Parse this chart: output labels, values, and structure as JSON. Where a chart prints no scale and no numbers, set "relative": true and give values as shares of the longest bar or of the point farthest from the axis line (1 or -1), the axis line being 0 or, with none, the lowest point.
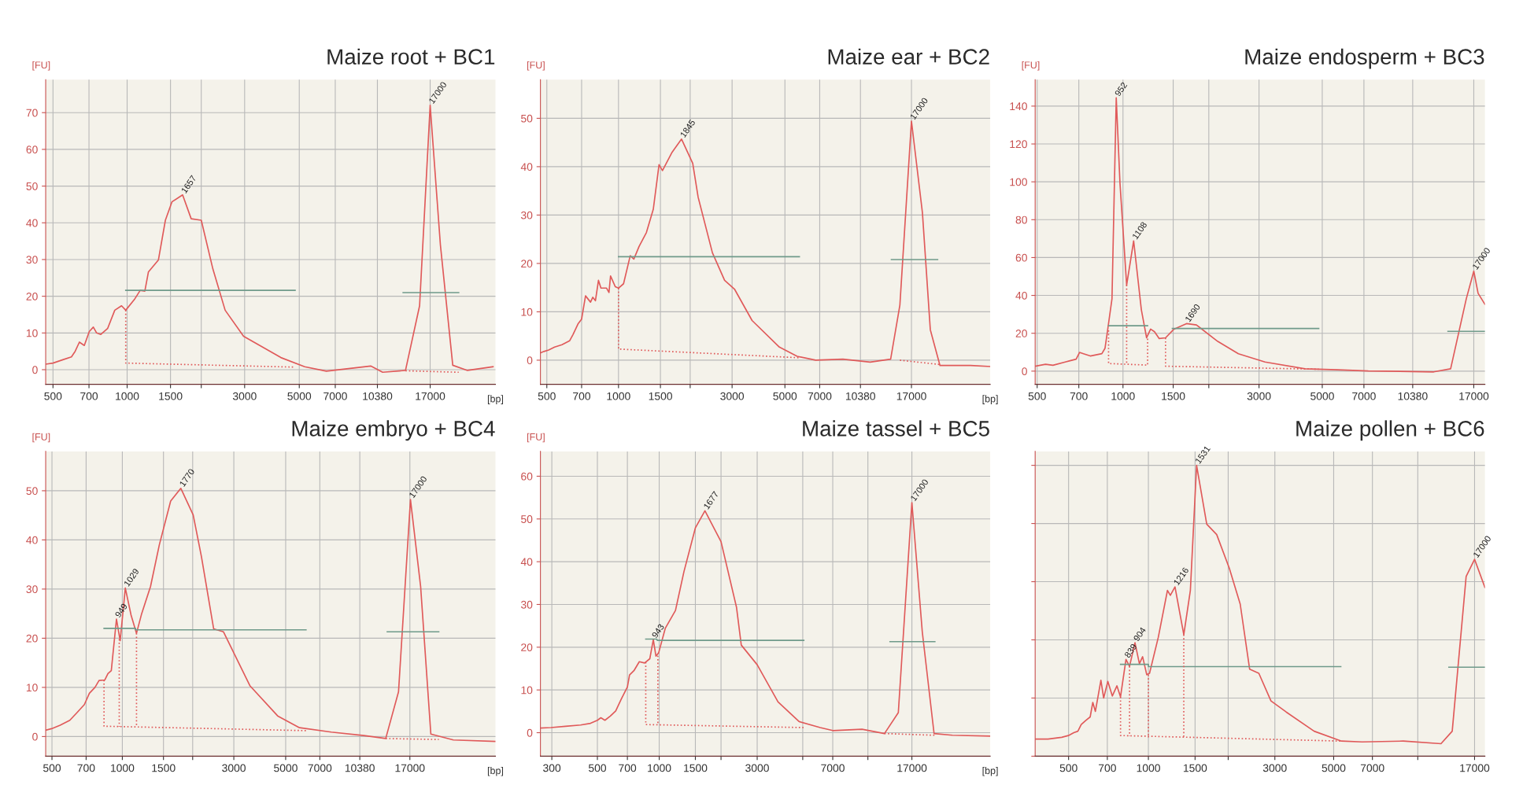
{
  "chart_data": [
    {
      "type": "line",
      "title": "Maize root + BC1",
      "log": "x",
      "xlabel": "[bp]",
      "ylabel": "[FU]",
      "xlim": [
        467,
        31300
      ],
      "ylim": [
        -4,
        79
      ],
      "yticks": [
        0,
        10,
        20,
        30,
        40,
        50,
        60,
        70
      ],
      "grid": true,
      "line_style": "solid",
      "xticks": [
        500,
        700,
        1000,
        1500,
        {
          "value": 2000,
          "label": null
        },
        3000,
        5000,
        7000,
        10380,
        17000
      ],
      "series": [
        {
          "color": "#e05a5a",
          "x": [
            467,
            500,
            548,
            594,
            615,
            640,
            670,
            702,
            729,
            752,
            782,
            833,
            891,
            949,
            987,
            1070,
            1130,
            1180,
            1220,
            1340,
            1430,
            1520,
            1680,
            1820,
            2000,
            2230,
            2500,
            2970,
            4210,
            5260,
            6440,
            9750,
            10900,
            13500,
            15400,
            17000,
            18700,
            21000,
            24100,
            30600
          ],
          "values": [
            1.5,
            1.8,
            2.7,
            3.5,
            5.0,
            7.5,
            6.6,
            10.4,
            11.6,
            10.0,
            9.6,
            11.2,
            16.2,
            17.4,
            16.2,
            19.1,
            21.6,
            21.4,
            26.6,
            29.9,
            40.7,
            45.7,
            47.6,
            41.1,
            40.7,
            27.4,
            16.2,
            9.1,
            3.3,
            0.8,
            -0.4,
            1.0,
            -0.7,
            -0.2,
            17.4,
            72.0,
            34.1,
            1.2,
            -0.2,
            0.8
          ]
        },
        {
          "color": "#6f9a8a",
          "x": [
            987,
            4810
          ],
          "values": [
            21.6,
            21.6
          ]
        },
        {
          "color": "#6f9a8a",
          "x": [
            13200,
            22200
          ],
          "values": [
            21.0,
            21.0
          ]
        },
        {
          "color": "#e05a5a",
          "line_style": "dotted",
          "x": [
            987,
            987,
            4810
          ],
          "values": [
            16.2,
            1.8,
            0.7
          ]
        },
        {
          "color": "#e05a5a",
          "line_style": "dotted",
          "x": [
            13500,
            22200
          ],
          "values": [
            -0.3,
            -0.7
          ]
        }
      ],
      "annotations": [
        {
          "text": "1657",
          "x": 1680,
          "y": 47.6
        },
        {
          "text": "17000",
          "x": 17000,
          "y": 72.0
        }
      ]
    },
    {
      "type": "line",
      "title": "Maize ear + BC2",
      "log": "x",
      "xlabel": "[bp]",
      "ylabel": "[FU]",
      "xlim": [
        470,
        36400
      ],
      "ylim": [
        -5,
        58
      ],
      "yticks": [
        0,
        10,
        20,
        30,
        40,
        50
      ],
      "grid": true,
      "line_style": "solid",
      "xticks": [
        500,
        700,
        1000,
        1500,
        {
          "value": 2000,
          "label": null
        },
        3000,
        5000,
        7000,
        10380,
        17000
      ],
      "series": [
        {
          "color": "#e05a5a",
          "x": [
            470,
            486,
            509,
            539,
            579,
            623,
            644,
            676,
            700,
            727,
            763,
            780,
            800,
            824,
            844,
            891,
            912,
            926,
            969,
            1000,
            1050,
            1120,
            1160,
            1220,
            1310,
            1400,
            1480,
            1530,
            1680,
            1840,
            2050,
            2160,
            2480,
            2790,
            3070,
            3640,
            4740,
            5630,
            6730,
            8760,
            11400,
            13900,
            15200,
            17000,
            18900,
            20400,
            22400,
            30100,
            36400
          ],
          "values": [
            1.5,
            1.8,
            2.1,
            2.7,
            3.2,
            4.0,
            5.3,
            7.5,
            8.5,
            13.3,
            12.0,
            13.0,
            12.3,
            16.5,
            14.9,
            14.9,
            14.0,
            17.4,
            15.2,
            14.9,
            15.8,
            21.6,
            20.9,
            23.5,
            26.4,
            31.2,
            40.4,
            39.2,
            43.0,
            45.7,
            40.7,
            33.7,
            22.2,
            16.5,
            14.7,
            8.2,
            2.7,
            0.8,
            0,
            0.2,
            -0.4,
            0.2,
            11.4,
            49.4,
            30.5,
            6.3,
            -1.1,
            -1.1,
            -1.3
          ]
        },
        {
          "color": "#6f9a8a",
          "x": [
            1000,
            5750
          ],
          "values": [
            21.4,
            21.4
          ]
        },
        {
          "color": "#6f9a8a",
          "x": [
            14000,
            21900
          ],
          "values": [
            20.8,
            20.8
          ]
        },
        {
          "color": "#e05a5a",
          "line_style": "dotted",
          "x": [
            1000,
            1000,
            5750
          ],
          "values": [
            14.9,
            2.3,
            0.5
          ]
        },
        {
          "color": "#e05a5a",
          "line_style": "dotted",
          "x": [
            15200,
            22400
          ],
          "values": [
            0,
            -0.9
          ]
        }
      ],
      "annotations": [
        {
          "text": "1845",
          "x": 1840,
          "y": 45.7
        },
        {
          "text": "17000",
          "x": 17000,
          "y": 49.4
        }
      ]
    },
    {
      "type": "line",
      "title": "Maize endosperm + BC3",
      "log": "x",
      "ylabel": "[FU]",
      "xlim": [
        492,
        18600
      ],
      "ylim": [
        -7,
        154
      ],
      "yticks": [
        0,
        20,
        40,
        60,
        80,
        100,
        120,
        140
      ],
      "grid": true,
      "line_style": "solid",
      "xticks": [
        500,
        700,
        1000,
        1500,
        {
          "value": 2000,
          "label": null
        },
        3000,
        5000,
        7000,
        10380,
        17000
      ],
      "series": [
        {
          "color": "#e05a5a",
          "x": [
            492,
            535,
            568,
            627,
            652,
            685,
            704,
            727,
            768,
            843,
            865,
            883,
            915,
            947,
            976,
            1030,
            1090,
            1160,
            1210,
            1250,
            1290,
            1340,
            1410,
            1510,
            1670,
            1810,
            2150,
            2540,
            3150,
            4350,
            5650,
            7250,
            12300,
            14100,
            16000,
            17000,
            17600,
            18600
          ],
          "values": [
            2.6,
            3.6,
            3.1,
            4.8,
            5.5,
            6.3,
            9.9,
            9.2,
            8.0,
            9.2,
            12.1,
            21.5,
            38.2,
            144.4,
            99.3,
            45.5,
            68.8,
            32.4,
            17.6,
            22.2,
            20.8,
            17.2,
            17.6,
            22.2,
            25.1,
            24.4,
            15.7,
            9.2,
            4.8,
            1.2,
            0.7,
            0.1,
            -0.4,
            1.2,
            38.2,
            52.8,
            41.1,
            35.3
          ]
        },
        {
          "color": "#6f9a8a",
          "x": [
            890,
            1220
          ],
          "values": [
            24.0,
            24.0
          ]
        },
        {
          "color": "#6f9a8a",
          "x": [
            1490,
            4860
          ],
          "values": [
            22.5,
            22.5
          ]
        },
        {
          "color": "#6f9a8a",
          "x": [
            13800,
            18600
          ],
          "values": [
            21.0,
            21.0
          ]
        },
        {
          "color": "#e05a5a",
          "line_style": "dotted",
          "x": [
            890,
            890,
            1220,
            1220
          ],
          "values": [
            21.5,
            4.0,
            3.2,
            17.6
          ]
        },
        {
          "color": "#e05a5a",
          "line_style": "dotted",
          "x": [
            1030,
            1030
          ],
          "values": [
            45.5,
            3.6
          ]
        },
        {
          "color": "#e05a5a",
          "line_style": "dotted",
          "x": [
            1410,
            1410,
            4860
          ],
          "values": [
            17.6,
            2.6,
            1.0
          ]
        }
      ],
      "annotations": [
        {
          "text": "952",
          "x": 947,
          "y": 144.4
        },
        {
          "text": "1108",
          "x": 1090,
          "y": 68.8
        },
        {
          "text": "1690",
          "x": 1670,
          "y": 25.1
        },
        {
          "text": "17000",
          "x": 17000,
          "y": 52.8
        }
      ]
    },
    {
      "type": "line",
      "title": "Maize embryo + BC4",
      "log": "x",
      "xlabel": "[bp]",
      "ylabel": "[FU]",
      "xlim": [
        470,
        39500
      ],
      "ylim": [
        -4,
        58
      ],
      "yticks": [
        0,
        10,
        20,
        30,
        40,
        50
      ],
      "grid": true,
      "line_style": "solid",
      "xticks": [
        500,
        700,
        1000,
        1500,
        {
          "value": 2000,
          "label": null
        },
        3000,
        5000,
        7000,
        10380,
        17000
      ],
      "series": [
        {
          "color": "#e05a5a",
          "x": [
            470,
            498,
            542,
            596,
            641,
            688,
            723,
            764,
            795,
            841,
            868,
            897,
            944,
            979,
            1030,
            1090,
            1150,
            1210,
            1320,
            1440,
            1610,
            1780,
            2010,
            2180,
            2460,
            2710,
            3520,
            4620,
            5730,
            7840,
            10800,
            13400,
            15200,
            17100,
            18900,
            20900,
            26100,
            39500
          ],
          "values": [
            1.3,
            1.6,
            2.3,
            3.3,
            4.9,
            6.5,
            8.8,
            10.0,
            11.4,
            11.5,
            12.8,
            13.4,
            23.9,
            19.5,
            30.2,
            24.7,
            21.0,
            25.0,
            30.5,
            39.0,
            47.9,
            50.5,
            45.1,
            36.6,
            21.9,
            21.3,
            10.3,
            4.2,
            1.8,
            0.9,
            0.2,
            -0.4,
            9.1,
            48.2,
            30.5,
            0.5,
            -0.7,
            -1.0
          ]
        },
        {
          "color": "#6f9a8a",
          "x": [
            835,
            1140,
            1140,
            6110
          ],
          "values": [
            22.0,
            22.0,
            21.7,
            21.7
          ]
        },
        {
          "color": "#6f9a8a",
          "x": [
            13600,
            22600
          ],
          "values": [
            21.3,
            21.3
          ]
        },
        {
          "color": "#e05a5a",
          "line_style": "dotted",
          "x": [
            835,
            835,
            6110
          ],
          "values": [
            11.5,
            2.1,
            1.2
          ]
        },
        {
          "color": "#e05a5a",
          "line_style": "dotted",
          "x": [
            970,
            970
          ],
          "values": [
            19.8,
            2.0
          ]
        },
        {
          "color": "#e05a5a",
          "line_style": "dotted",
          "x": [
            1150,
            1150
          ],
          "values": [
            21.0,
            1.9
          ]
        },
        {
          "color": "#e05a5a",
          "line_style": "dotted",
          "x": [
            13400,
            22600
          ],
          "values": [
            -0.4,
            -0.6
          ]
        }
      ],
      "annotations": [
        {
          "text": "949",
          "x": 944,
          "y": 23.9
        },
        {
          "text": "1029",
          "x": 1030,
          "y": 30.2
        },
        {
          "text": "1770",
          "x": 1780,
          "y": 50.5
        },
        {
          "text": "17000",
          "x": 17100,
          "y": 48.2
        }
      ]
    },
    {
      "type": "line",
      "title": "Maize tassel + BC5",
      "log": "x",
      "xlabel": "[bp]",
      "ylabel": "[FU]",
      "xlim": [
        264,
        40900
      ],
      "ylim": [
        -5.5,
        65.8
      ],
      "yticks": [
        0,
        10,
        20,
        30,
        40,
        50,
        60
      ],
      "grid": true,
      "line_style": "solid",
      "xticks": [
        300,
        500,
        700,
        1000,
        1500,
        {
          "value": 2000,
          "label": null
        },
        3000,
        {
          "value": 5000,
          "label": null
        },
        7000,
        {
          "value": 10380,
          "label": null
        },
        17000
      ],
      "series": [
        {
          "color": "#e05a5a",
          "x": [
            264,
            297,
            350,
            414,
            463,
            500,
            520,
            544,
            578,
            614,
            654,
            700,
            717,
            753,
            800,
            849,
            900,
            936,
            964,
            994,
            1070,
            1200,
            1320,
            1500,
            1670,
            2000,
            2380,
            2510,
            3000,
            3790,
            4800,
            6080,
            7000,
            9720,
            12500,
            14600,
            17000,
            19100,
            21800,
            26800,
            40900
          ],
          "values": [
            1.1,
            1.2,
            1.5,
            1.8,
            2.2,
            2.9,
            3.5,
            2.9,
            3.9,
            5.1,
            7.9,
            10.7,
            13.5,
            14.5,
            16.6,
            16.3,
            17.3,
            21.8,
            17.9,
            18.7,
            24.4,
            28.6,
            37.7,
            47.9,
            51.9,
            44.7,
            29.3,
            20.5,
            15.9,
            7.2,
            2.6,
            1.2,
            0.5,
            0.8,
            -0.2,
            4.7,
            53.8,
            23.6,
            -0.2,
            -0.6,
            -0.8
          ]
        },
        {
          "color": "#6f9a8a",
          "x": [
            860,
            973,
            979,
            5060
          ],
          "values": [
            21.9,
            21.9,
            21.6,
            21.6
          ]
        },
        {
          "color": "#6f9a8a",
          "x": [
            13300,
            22000
          ],
          "values": [
            21.3,
            21.3
          ]
        },
        {
          "color": "#e05a5a",
          "line_style": "dotted",
          "x": [
            860,
            860,
            5060
          ],
          "values": [
            16.5,
            1.9,
            1.2
          ]
        },
        {
          "color": "#e05a5a",
          "line_style": "dotted",
          "x": [
            985,
            985
          ],
          "values": [
            18.0,
            1.8
          ]
        },
        {
          "color": "#e05a5a",
          "line_style": "dotted",
          "x": [
            12500,
            22000
          ],
          "values": [
            -0.2,
            -0.6
          ]
        }
      ],
      "annotations": [
        {
          "text": "943",
          "x": 936,
          "y": 21.8
        },
        {
          "text": "1677",
          "x": 1670,
          "y": 51.9
        },
        {
          "text": "17000",
          "x": 17000,
          "y": 53.8
        }
      ]
    },
    {
      "type": "line",
      "title": "Maize pollen + BC6",
      "log": "x",
      "relative": true,
      "tick_labels": "x",
      "xlim": [
        374,
        18600
      ],
      "grid": true,
      "line_style": "solid",
      "xticks": [
        500,
        700,
        1000,
        1500,
        {
          "value": 2000,
          "label": null
        },
        3000,
        5000,
        7000,
        {
          "value": 10380,
          "label": null
        },
        17000
      ],
      "series": [
        {
          "color": "#e05a5a",
          "x": [
            374,
            418,
            471,
            499,
            523,
            542,
            558,
            582,
            603,
            617,
            631,
            662,
            678,
            703,
            731,
            761,
            785,
            823,
            849,
            890,
            925,
            951,
            986,
            1010,
            1090,
            1180,
            1210,
            1260,
            1360,
            1440,
            1520,
            1660,
            1810,
            2020,
            2220,
            2410,
            2610,
            2900,
            3310,
            4220,
            5350,
            6400,
            9150,
            12700,
            14000,
            15800,
            17000,
            18600
          ],
          "values": [
            0.059,
            0.059,
            0.065,
            0.071,
            0.081,
            0.086,
            0.109,
            0.124,
            0.135,
            0.185,
            0.154,
            0.261,
            0.2,
            0.257,
            0.207,
            0.242,
            0.204,
            0.333,
            0.309,
            0.39,
            0.318,
            0.342,
            0.28,
            0.285,
            0.409,
            0.57,
            0.553,
            0.582,
            0.418,
            0.57,
            1.0,
            0.798,
            0.762,
            0.646,
            0.523,
            0.299,
            0.285,
            0.19,
            0.152,
            0.086,
            0.052,
            0.049,
            0.052,
            0.043,
            0.086,
            0.618,
            0.677,
            0.58
          ]
        },
        {
          "color": "#6f9a8a",
          "x": [
            785,
            1000,
            1000,
            5320
          ],
          "values": [
            0.316,
            0.316,
            0.308,
            0.308
          ]
        },
        {
          "color": "#6f9a8a",
          "x": [
            13600,
            18600
          ],
          "values": [
            0.306,
            0.306
          ]
        },
        {
          "color": "#e05a5a",
          "line_style": "dotted",
          "x": [
            785,
            785,
            5320
          ],
          "values": [
            0.204,
            0.071,
            0.052
          ]
        },
        {
          "color": "#e05a5a",
          "line_style": "dotted",
          "x": [
            849,
            849
          ],
          "values": [
            0.309,
            0.069
          ]
        },
        {
          "color": "#e05a5a",
          "line_style": "dotted",
          "x": [
            1000,
            1000
          ],
          "values": [
            0.28,
            0.064
          ]
        },
        {
          "color": "#e05a5a",
          "line_style": "dotted",
          "x": [
            1360,
            1360
          ],
          "values": [
            0.418,
            0.06
          ]
        }
      ],
      "annotations": [
        {
          "text": "839",
          "x": 823,
          "y": 0.333
        },
        {
          "text": "904",
          "x": 890,
          "y": 0.39
        },
        {
          "text": "1216",
          "x": 1260,
          "y": 0.582
        },
        {
          "text": "1531",
          "x": 1520,
          "y": 1.0
        },
        {
          "text": "17000",
          "x": 17000,
          "y": 0.677
        }
      ]
    }
  ]
}
